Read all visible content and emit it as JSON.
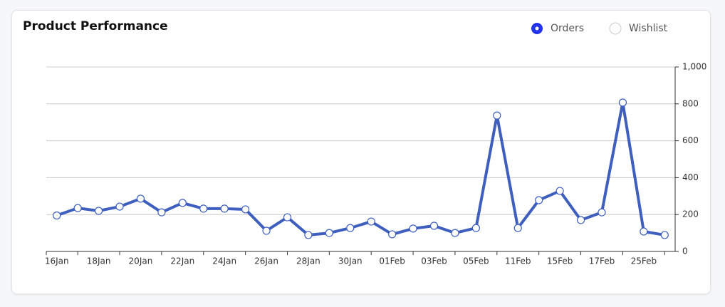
{
  "header": {
    "title": "Product Performance"
  },
  "legend": [
    {
      "label": "Orders",
      "selected": true
    },
    {
      "label": "Wishlist",
      "selected": false
    }
  ],
  "chart_data": {
    "type": "line",
    "categories": [
      "16Jan",
      null,
      "18Jan",
      null,
      "20Jan",
      null,
      "22Jan",
      null,
      "24Jan",
      null,
      "26Jan",
      null,
      "28Jan",
      null,
      "30Jan",
      null,
      "01Feb",
      null,
      "03Feb",
      null,
      "05Feb",
      null,
      "11Feb",
      null,
      "15Feb",
      null,
      "17Feb",
      null,
      "25Feb",
      null
    ],
    "series": [
      {
        "name": "Orders",
        "color": "#3f5fbf",
        "values": [
          195,
          235,
          220,
          243,
          286,
          212,
          263,
          232,
          232,
          228,
          112,
          185,
          89,
          100,
          127,
          162,
          93,
          124,
          139,
          100,
          127,
          737,
          127,
          278,
          328,
          170,
          212,
          807,
          108,
          89
        ]
      }
    ],
    "ylim": [
      0,
      1000
    ],
    "yticks": [
      0,
      200,
      400,
      600,
      800,
      {
        "value": 1000,
        "label": "1,000"
      }
    ],
    "grid": true
  }
}
